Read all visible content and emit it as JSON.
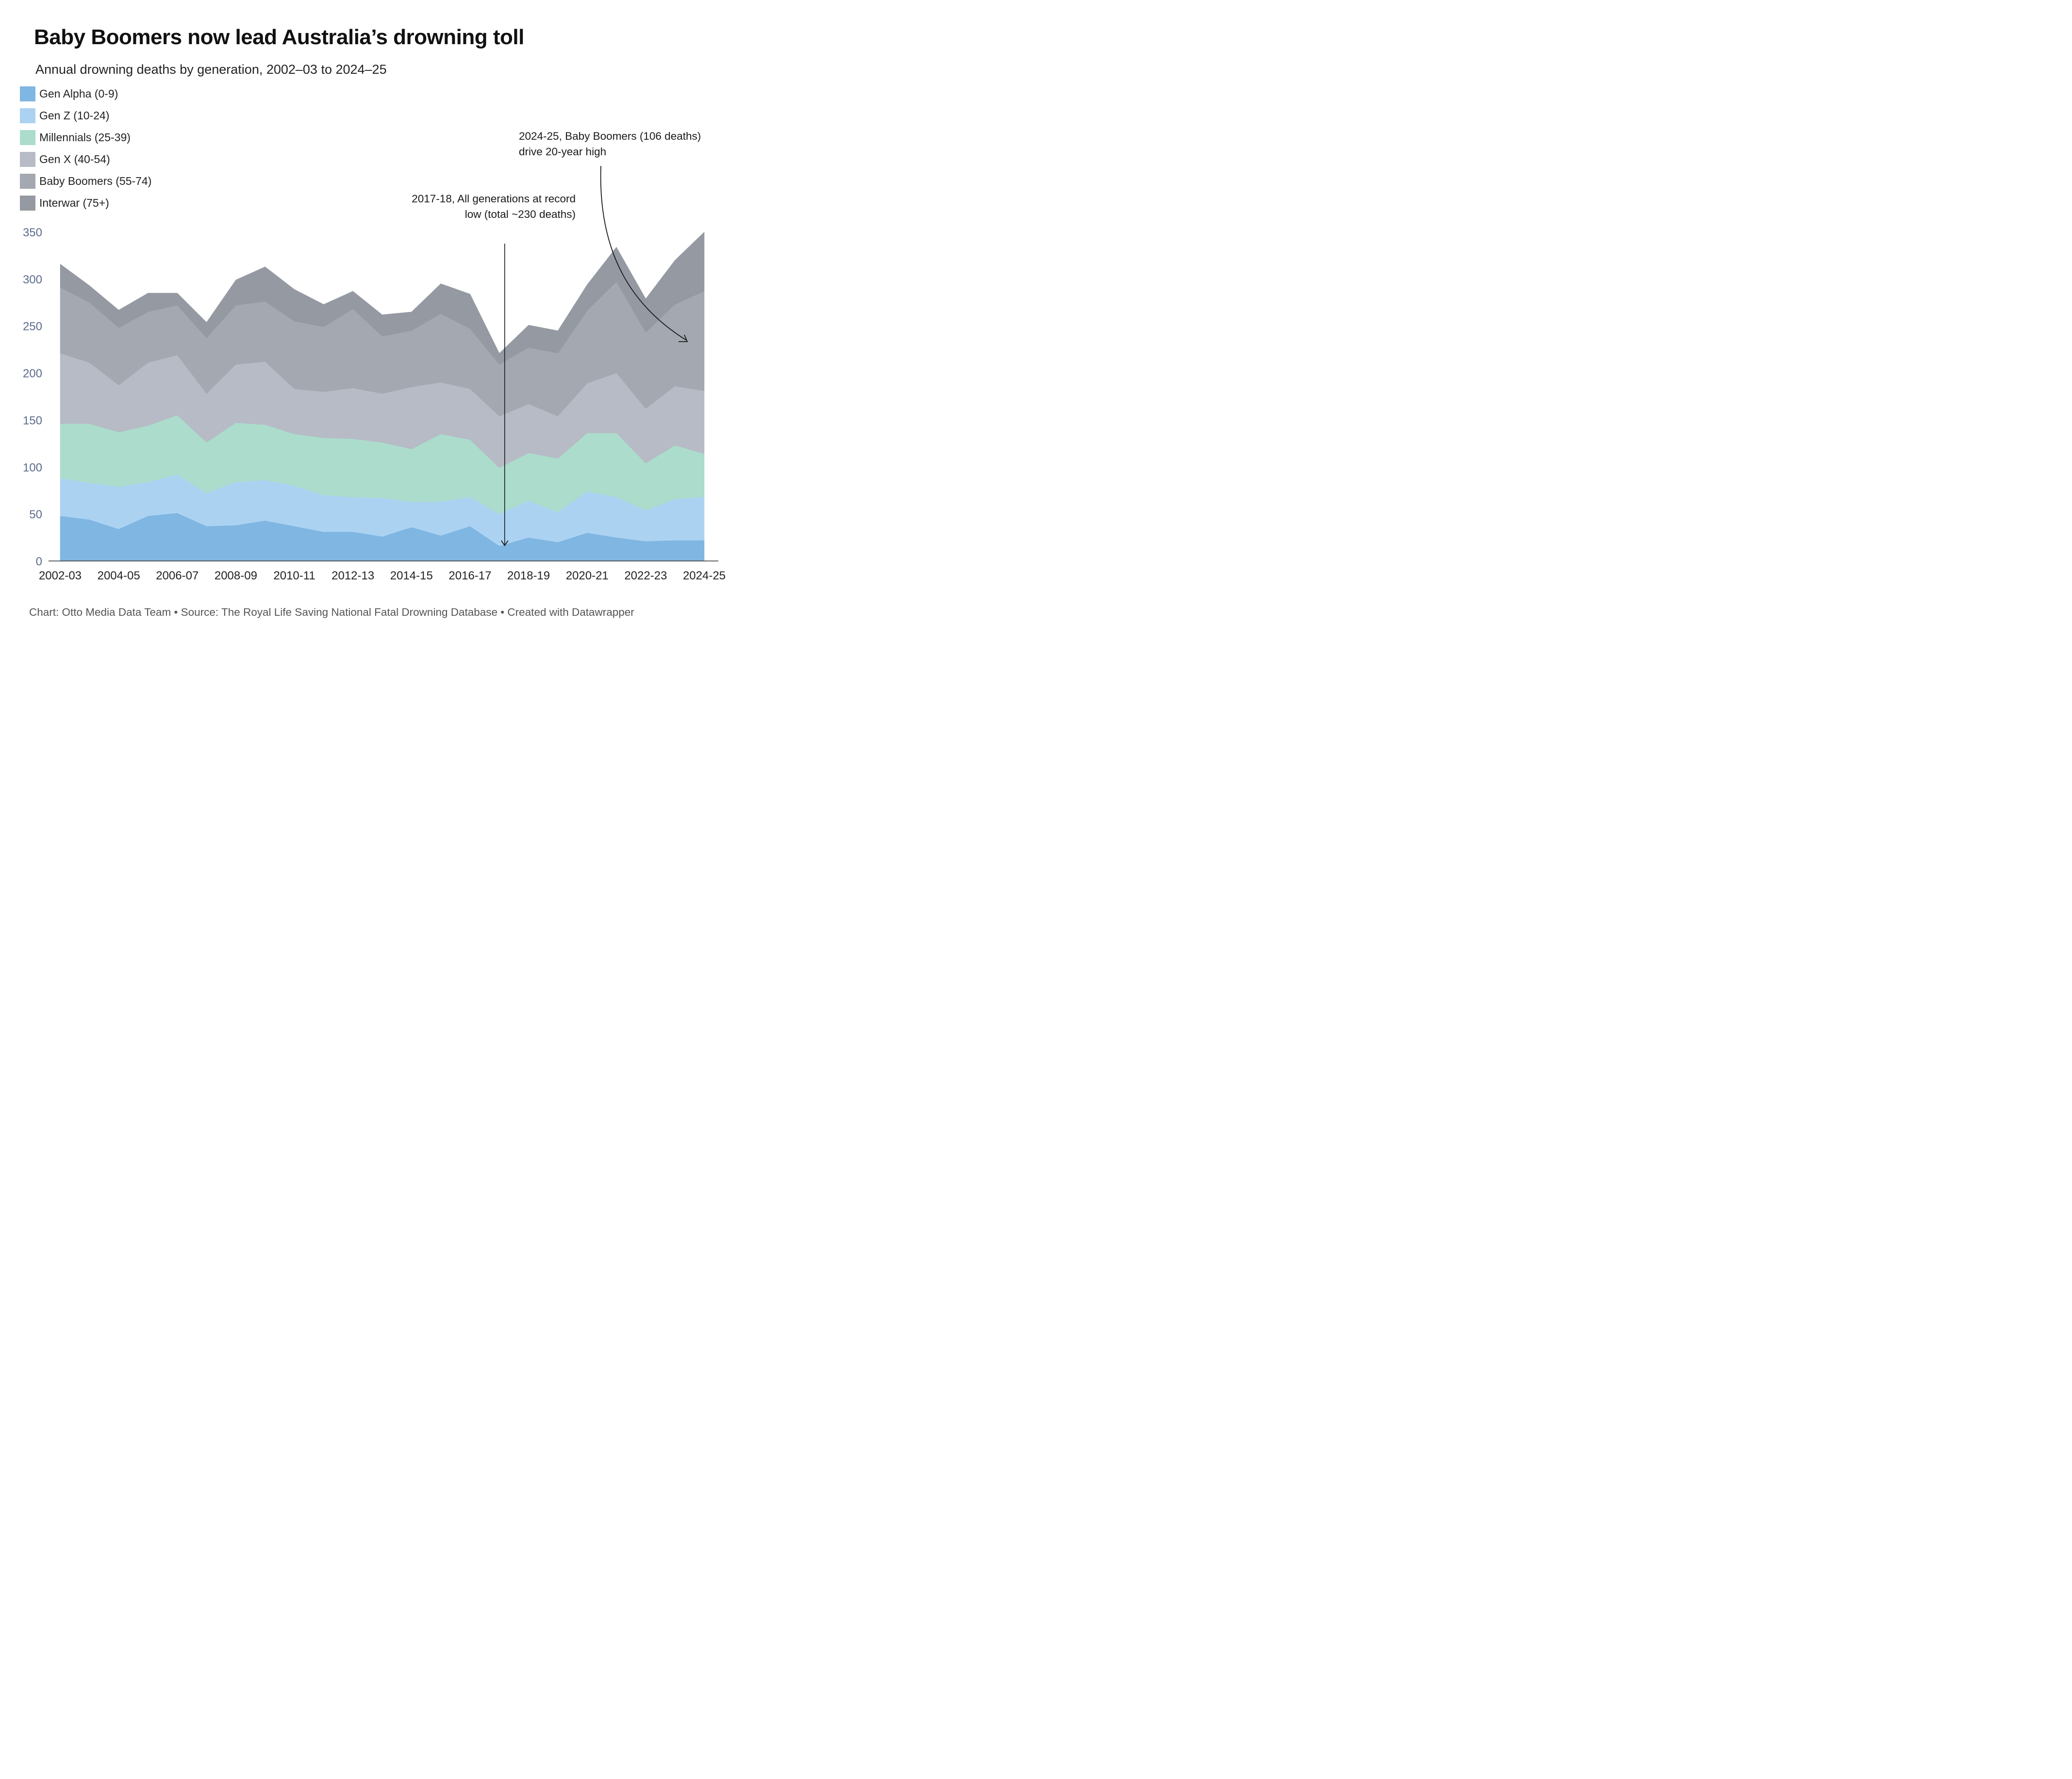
{
  "header": {
    "title": "Baby Boomers now lead Australia’s drowning toll",
    "subtitle": "Annual drowning deaths by generation, 2002–03 to 2024–25"
  },
  "legend": [
    {
      "label": "Gen Alpha (0-9)",
      "color": "#7fb6e2"
    },
    {
      "label": "Gen Z (10-24)",
      "color": "#acd2f2"
    },
    {
      "label": "Millennials (25-39)",
      "color": "#acdccc"
    },
    {
      "label": "Gen X (40-54)",
      "color": "#b6bbc5"
    },
    {
      "label": "Baby Boomers (55-74)",
      "color": "#a3a8b1"
    },
    {
      "label": "Interwar (75+)",
      "color": "#9499a2"
    }
  ],
  "annotations": [
    {
      "text": "2024-25, Baby Boomers (106 deaths) drive 20-year high",
      "target_year": "2024-25"
    },
    {
      "text": "2017-18, All generations at record low (total ~230 deaths)",
      "target_year": "2017-18"
    }
  ],
  "footer": "Chart: Otto Media Data Team • Source: The Royal Life Saving National Fatal Drowning Database • Created with Datawrapper",
  "chart_data": {
    "type": "area",
    "stacked": true,
    "title": "Baby Boomers now lead Australia’s drowning toll",
    "subtitle": "Annual drowning deaths by generation, 2002–03 to 2024–25",
    "xlabel": "",
    "ylabel": "",
    "ylim": [
      0,
      350
    ],
    "yticks": [
      0,
      50,
      100,
      150,
      200,
      250,
      300,
      350
    ],
    "grid": false,
    "legend_position": "top-left",
    "x": [
      "2002-03",
      "2003-04",
      "2004-05",
      "2005-06",
      "2006-07",
      "2007-08",
      "2008-09",
      "2009-10",
      "2010-11",
      "2011-12",
      "2012-13",
      "2013-14",
      "2014-15",
      "2015-16",
      "2016-17",
      "2017-18",
      "2018-19",
      "2019-20",
      "2020-21",
      "2021-22",
      "2022-23",
      "2023-24",
      "2024-25"
    ],
    "xtick_labels": [
      "2002-03",
      "2004-05",
      "2006-07",
      "2008-09",
      "2010-11",
      "2012-13",
      "2014-15",
      "2016-17",
      "2018-19",
      "2020-21",
      "2022-23",
      "2024-25"
    ],
    "series": [
      {
        "name": "Gen Alpha (0-9)",
        "color": "#7fb6e2",
        "values": [
          48,
          44,
          34,
          48,
          51,
          37,
          38,
          43,
          37,
          31,
          31,
          26,
          36,
          27,
          37,
          16,
          25,
          20,
          30,
          25,
          21,
          22,
          22
        ]
      },
      {
        "name": "Gen Z (10-24)",
        "color": "#acd2f2",
        "values": [
          40,
          39,
          45,
          36,
          41,
          35,
          46,
          43,
          43,
          39,
          37,
          41,
          27,
          36,
          31,
          34,
          39,
          32,
          44,
          43,
          33,
          44,
          46
        ]
      },
      {
        "name": "Millennials (25-39)",
        "color": "#acdccc",
        "values": [
          58,
          63,
          58,
          60,
          63,
          54,
          63,
          59,
          55,
          61,
          62,
          59,
          56,
          72,
          61,
          49,
          51,
          57,
          62,
          68,
          50,
          57,
          46
        ]
      },
      {
        "name": "Gen X (40-54)",
        "color": "#b6bbc5",
        "values": [
          75,
          65,
          50,
          67,
          64,
          52,
          62,
          67,
          48,
          49,
          54,
          52,
          66,
          55,
          54,
          55,
          52,
          45,
          53,
          64,
          58,
          63,
          67
        ]
      },
      {
        "name": "Baby Boomers (55-74)",
        "color": "#a3a8b1",
        "values": [
          70,
          64,
          61,
          54,
          53,
          59,
          63,
          64,
          72,
          69,
          84,
          61,
          60,
          73,
          64,
          55,
          60,
          67,
          77,
          97,
          81,
          87,
          106
        ]
      },
      {
        "name": "Interwar (75+)",
        "color": "#9499a2",
        "values": [
          25,
          18,
          19,
          20,
          13,
          17,
          27,
          37,
          34,
          24,
          19,
          23,
          20,
          32,
          37,
          12,
          24,
          24,
          28,
          37,
          36,
          47,
          63
        ]
      }
    ],
    "annotations": [
      {
        "x": "2024-25",
        "text": "2024-25, Baby Boomers (106 deaths) drive 20-year high"
      },
      {
        "x": "2017-18",
        "text": "2017-18, All generations at record low (total ~230 deaths)"
      }
    ]
  }
}
